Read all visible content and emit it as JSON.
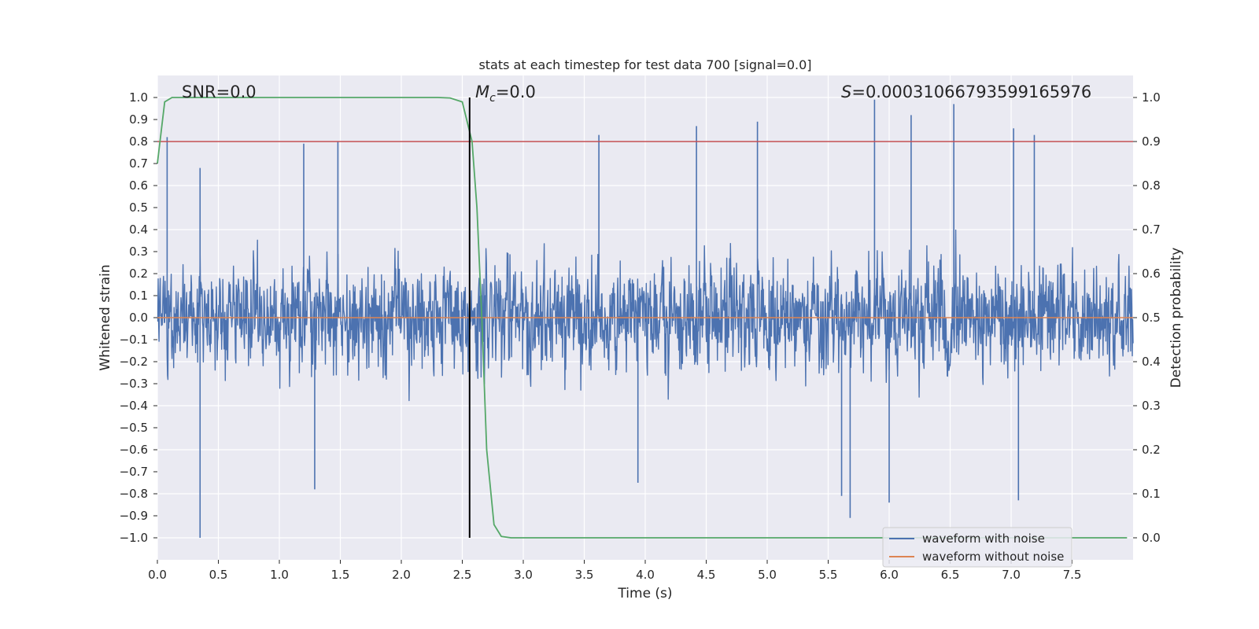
{
  "chart_data": {
    "type": "line",
    "title": "stats at each timestep for test data 700 [signal=0.0]",
    "xlabel": "Time (s)",
    "ylabel_left": "Whitened strain",
    "ylabel_right": "Detection probability",
    "xlim": [
      0.0,
      8.0
    ],
    "ylim_left": [
      -1.1,
      1.1
    ],
    "ylim_right": [
      -0.05,
      1.05
    ],
    "x_ticks": [
      "0.0",
      "0.5",
      "1.0",
      "1.5",
      "2.0",
      "2.5",
      "3.0",
      "3.5",
      "4.0",
      "4.5",
      "5.0",
      "5.5",
      "6.0",
      "6.5",
      "7.0",
      "7.5"
    ],
    "y_ticks_left": [
      "1.0",
      "0.9",
      "0.8",
      "0.7",
      "0.6",
      "0.5",
      "0.4",
      "0.3",
      "0.2",
      "0.1",
      "0.0",
      "−0.1",
      "−0.2",
      "−0.3",
      "−0.4",
      "−0.5",
      "−0.6",
      "−0.7",
      "−0.8",
      "−0.9",
      "−1.0"
    ],
    "y_ticks_right": [
      "1.0",
      "0.9",
      "0.8",
      "0.7",
      "0.6",
      "0.5",
      "0.4",
      "0.3",
      "0.2",
      "0.1",
      "0.0"
    ],
    "grid": true,
    "legend_position": "lower-right",
    "annotations": {
      "snr": "SNR=0.0",
      "mc_symbol": "M",
      "mc_sub": "c",
      "mc_value": "=0.0",
      "s_symbol": "S",
      "s_value": "=0.00031066793599165976"
    },
    "series": [
      {
        "name": "waveform with noise",
        "color": "#4c72b0",
        "axis": "left",
        "note": "dense whitened noise, amplitude roughly within -1 to 1",
        "noise_seed": 700,
        "peaks": [
          {
            "x": 0.08,
            "y": 0.82
          },
          {
            "x": 0.35,
            "y": 0.68
          },
          {
            "x": 1.2,
            "y": 0.79
          },
          {
            "x": 1.48,
            "y": 0.8
          },
          {
            "x": 3.62,
            "y": 0.83
          },
          {
            "x": 4.42,
            "y": 0.87
          },
          {
            "x": 4.92,
            "y": 0.89
          },
          {
            "x": 5.88,
            "y": 0.99
          },
          {
            "x": 6.18,
            "y": 0.92
          },
          {
            "x": 6.53,
            "y": 0.97
          },
          {
            "x": 7.02,
            "y": 0.86
          },
          {
            "x": 7.19,
            "y": 0.83
          }
        ],
        "troughs": [
          {
            "x": 0.35,
            "y": -1.0
          },
          {
            "x": 1.29,
            "y": -0.78
          },
          {
            "x": 3.94,
            "y": -0.75
          },
          {
            "x": 5.61,
            "y": -0.81
          },
          {
            "x": 5.68,
            "y": -0.91
          },
          {
            "x": 6.0,
            "y": -0.84
          },
          {
            "x": 7.06,
            "y": -0.83
          }
        ]
      },
      {
        "name": "waveform without noise",
        "color": "#dd8452",
        "axis": "left",
        "x": [
          0.0,
          8.0
        ],
        "y": [
          0.0,
          0.0
        ]
      },
      {
        "name": "detection probability",
        "color": "#55a868",
        "axis": "right",
        "x": [
          0.0,
          0.06,
          0.12,
          0.5,
          1.0,
          1.5,
          2.0,
          2.3,
          2.4,
          2.5,
          2.58,
          2.62,
          2.66,
          2.7,
          2.76,
          2.82,
          2.9,
          3.2,
          4.0,
          5.0,
          6.0,
          7.0,
          7.95
        ],
        "y": [
          0.85,
          0.99,
          1.0,
          1.0,
          1.0,
          1.0,
          1.0,
          1.0,
          0.999,
          0.99,
          0.9,
          0.75,
          0.5,
          0.2,
          0.03,
          0.003,
          0.0,
          0.0,
          0.0,
          0.0,
          0.0,
          0.0,
          0.0
        ]
      }
    ],
    "threshold": {
      "axis": "right",
      "value": 0.9,
      "color": "#c44e52"
    },
    "marker": {
      "x": 2.56,
      "y_from": 0.0,
      "y_to": 1.0,
      "axis": "right",
      "color": "#000000"
    },
    "legend": [
      {
        "label": "waveform with noise",
        "color": "#4c72b0"
      },
      {
        "label": "waveform without noise",
        "color": "#dd8452"
      }
    ],
    "background": "#eaeaf2"
  }
}
